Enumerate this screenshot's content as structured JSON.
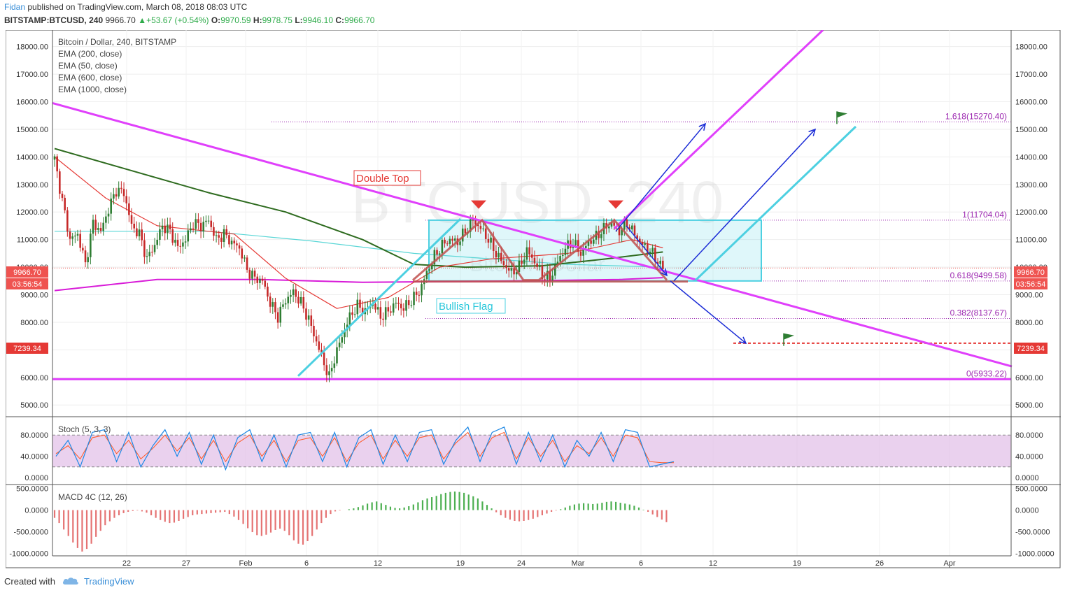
{
  "header": {
    "author": "Fidan",
    "published": "published on TradingView.com, March 08, 2018 08:03 UTC",
    "symbol": "BITSTAMP:BTCUSD, 240",
    "last": "9966.70",
    "change": "+53.67 (+0.54%)",
    "o_label": "O:",
    "o_val": "9970.59",
    "h_label": "H:",
    "h_val": "9978.75",
    "l_label": "L:",
    "l_val": "9946.10",
    "c_label": "C:",
    "c_val": "9966.70"
  },
  "legend": {
    "title": "Bitcoin / Dollar, 240, BITSTAMP",
    "ema1": "EMA (200, close)",
    "ema2": "EMA (50, close)",
    "ema3": "EMA (600, close)",
    "ema4": "EMA (1000, close)"
  },
  "watermark": "BTCUSD, 240",
  "watermark_sub": "Bitcoin / Dollar",
  "annotations": {
    "double_top": "Double Top",
    "bullish_flag": "Bullish Flag"
  },
  "badges": {
    "price": "9966.70",
    "countdown": "03:56:54",
    "target": "7239.34"
  },
  "colors": {
    "up": "#26a69a",
    "down": "#ef5350",
    "trendline": "#e040fb",
    "channel": "#4dd0e1",
    "arrow": "#1a2bd6",
    "fib": "#9c27b0"
  },
  "footer": {
    "created": "Created with",
    "brand": "TradingView"
  },
  "chart_data": [
    {
      "type": "candlestick",
      "title": "Bitcoin / Dollar, 240, BITSTAMP",
      "y_ticks": [
        "18000.00",
        "17000.00",
        "16000.00",
        "15000.00",
        "14000.00",
        "13000.00",
        "12000.00",
        "11000.00",
        "10000.00",
        "9000.00",
        "8000.00",
        "7000.00",
        "6000.00",
        "5000.00"
      ],
      "y_range": [
        4600,
        18600
      ],
      "x_ticks": [
        "22",
        "27",
        "Feb",
        "6",
        "12",
        "19",
        "24",
        "Mar",
        "6",
        "12",
        "19",
        "26",
        "Apr"
      ],
      "last_price": 9966.7,
      "fib_levels": [
        {
          "label": "1.618(15270.40)",
          "value": 15270.4
        },
        {
          "label": "1(11704.04)",
          "value": 11704.04
        },
        {
          "label": "0.618(9499.58)",
          "value": 9499.58
        },
        {
          "label": "0.382(8137.67)",
          "value": 8137.67
        },
        {
          "label": "0(5933.22)",
          "value": 5933.22
        }
      ],
      "target_level": 7239.34,
      "close_path": [
        [
          0,
          13900
        ],
        [
          3,
          12400
        ],
        [
          6,
          11000
        ],
        [
          9,
          11200
        ],
        [
          12,
          10100
        ],
        [
          15,
          11600
        ],
        [
          18,
          11300
        ],
        [
          21,
          12100
        ],
        [
          24,
          12800
        ],
        [
          27,
          12700
        ],
        [
          30,
          11500
        ],
        [
          33,
          11200
        ],
        [
          36,
          10300
        ],
        [
          39,
          10800
        ],
        [
          42,
          11500
        ],
        [
          45,
          11300
        ],
        [
          48,
          10700
        ],
        [
          51,
          11000
        ],
        [
          54,
          11600
        ],
        [
          57,
          11500
        ],
        [
          60,
          11700
        ],
        [
          63,
          11000
        ],
        [
          66,
          11200
        ],
        [
          69,
          10900
        ],
        [
          72,
          10700
        ],
        [
          75,
          9900
        ],
        [
          78,
          9600
        ],
        [
          81,
          9500
        ],
        [
          84,
          8700
        ],
        [
          87,
          8200
        ],
        [
          90,
          8800
        ],
        [
          93,
          9100
        ],
        [
          96,
          8700
        ],
        [
          99,
          8100
        ],
        [
          102,
          7300
        ],
        [
          105,
          6500
        ],
        [
          107,
          6000
        ],
        [
          109,
          6700
        ],
        [
          112,
          7500
        ],
        [
          115,
          8200
        ],
        [
          118,
          8600
        ],
        [
          121,
          8400
        ],
        [
          124,
          8700
        ],
        [
          127,
          8200
        ],
        [
          130,
          8400
        ],
        [
          133,
          8700
        ],
        [
          136,
          8500
        ],
        [
          139,
          8800
        ],
        [
          142,
          9100
        ],
        [
          145,
          9800
        ],
        [
          148,
          10400
        ],
        [
          151,
          10800
        ],
        [
          154,
          11000
        ],
        [
          157,
          10900
        ],
        [
          160,
          11300
        ],
        [
          163,
          11700
        ],
        [
          166,
          11400
        ],
        [
          169,
          11000
        ],
        [
          172,
          10500
        ],
        [
          175,
          10100
        ],
        [
          178,
          9800
        ],
        [
          181,
          10000
        ],
        [
          184,
          10600
        ],
        [
          187,
          10200
        ],
        [
          190,
          9700
        ],
        [
          193,
          9600
        ],
        [
          196,
          10200
        ],
        [
          199,
          10700
        ],
        [
          202,
          10900
        ],
        [
          205,
          10500
        ],
        [
          208,
          10900
        ],
        [
          211,
          11100
        ],
        [
          214,
          11400
        ],
        [
          217,
          11600
        ],
        [
          220,
          11300
        ],
        [
          223,
          11600
        ],
        [
          226,
          11200
        ],
        [
          229,
          10800
        ],
        [
          232,
          10600
        ],
        [
          235,
          10200
        ],
        [
          237,
          9966
        ]
      ],
      "ema_200": [
        [
          0,
          14300
        ],
        [
          30,
          13500
        ],
        [
          60,
          12700
        ],
        [
          90,
          12000
        ],
        [
          120,
          11000
        ],
        [
          140,
          10100
        ],
        [
          160,
          10000
        ],
        [
          190,
          10050
        ],
        [
          215,
          10300
        ],
        [
          237,
          10550
        ]
      ],
      "ema_50": [
        [
          0,
          14000
        ],
        [
          20,
          12500
        ],
        [
          40,
          11500
        ],
        [
          70,
          11200
        ],
        [
          90,
          9600
        ],
        [
          110,
          8500
        ],
        [
          130,
          8900
        ],
        [
          150,
          10000
        ],
        [
          170,
          10300
        ],
        [
          200,
          10500
        ],
        [
          225,
          11000
        ],
        [
          237,
          10700
        ]
      ],
      "ema_600": [
        [
          0,
          11300
        ],
        [
          60,
          11300
        ],
        [
          100,
          10950
        ],
        [
          140,
          10500
        ],
        [
          200,
          10100
        ],
        [
          237,
          10000
        ]
      ],
      "ema_1000": [
        [
          0,
          9150
        ],
        [
          40,
          9550
        ],
        [
          80,
          9550
        ],
        [
          120,
          9450
        ],
        [
          180,
          9500
        ],
        [
          220,
          9550
        ],
        [
          237,
          9620
        ]
      ]
    },
    {
      "type": "line",
      "title": "Stoch (5, 3, 3)",
      "y_ticks": [
        "80.0000",
        "40.0000",
        "0.0000"
      ],
      "y_range": [
        0,
        100
      ],
      "band": [
        20,
        80
      ],
      "k": [
        40,
        70,
        20,
        85,
        90,
        30,
        85,
        20,
        60,
        90,
        40,
        85,
        25,
        80,
        15,
        75,
        90,
        30,
        80,
        20,
        80,
        85,
        30,
        85,
        20,
        75,
        90,
        25,
        80,
        30,
        85,
        90,
        25,
        70,
        95,
        30,
        85,
        95,
        25,
        85,
        30,
        80,
        20,
        70,
        40,
        85,
        30,
        90,
        85,
        20,
        25,
        30
      ],
      "d": [
        45,
        60,
        35,
        75,
        80,
        45,
        70,
        35,
        55,
        80,
        50,
        75,
        35,
        70,
        30,
        65,
        80,
        40,
        70,
        30,
        70,
        75,
        40,
        75,
        30,
        65,
        80,
        35,
        70,
        40,
        75,
        80,
        35,
        65,
        85,
        40,
        75,
        85,
        35,
        75,
        40,
        70,
        30,
        60,
        45,
        75,
        40,
        80,
        75,
        30,
        28,
        28
      ]
    },
    {
      "type": "bar",
      "title": "MACD 4C (12, 26)",
      "y_ticks": [
        "500.0000",
        "0.0000",
        "-500.0000",
        "-1000.0000"
      ],
      "y_range": [
        -1060,
        560
      ],
      "values": [
        -180,
        -300,
        -450,
        -600,
        -750,
        -880,
        -960,
        -900,
        -780,
        -620,
        -480,
        -350,
        -260,
        -180,
        -120,
        -70,
        -40,
        -20,
        -10,
        -30,
        -60,
        -120,
        -180,
        -230,
        -270,
        -300,
        -290,
        -250,
        -200,
        -160,
        -120,
        -100,
        -90,
        -80,
        -70,
        -60,
        -50,
        -40,
        -90,
        -150,
        -230,
        -320,
        -420,
        -510,
        -580,
        -600,
        -570,
        -520,
        -460,
        -430,
        -480,
        -580,
        -700,
        -780,
        -800,
        -720,
        -600,
        -450,
        -300,
        -180,
        -90,
        -30,
        -10,
        0,
        20,
        40,
        70,
        110,
        150,
        180,
        200,
        160,
        120,
        80,
        50,
        40,
        60,
        90,
        130,
        180,
        230,
        270,
        300,
        330,
        370,
        400,
        420,
        430,
        420,
        400,
        360,
        320,
        270,
        200,
        120,
        40,
        -50,
        -120,
        -180,
        -220,
        -250,
        -260,
        -250,
        -230,
        -200,
        -160,
        -120,
        -80,
        -40,
        -10,
        20,
        60,
        100,
        130,
        150,
        160,
        150,
        140,
        150,
        170,
        190,
        200,
        190,
        170,
        150,
        130,
        100,
        60,
        10,
        -40,
        -100,
        -160,
        -220,
        -280
      ]
    }
  ]
}
